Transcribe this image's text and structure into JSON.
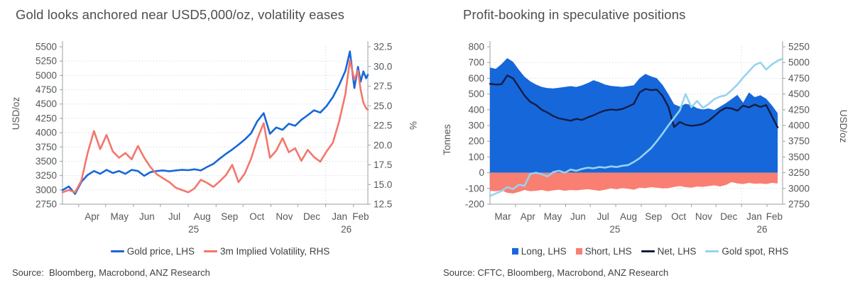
{
  "chart_data": [
    {
      "type": "line",
      "title": "Gold looks anchored near USD5,000/oz, volatility eases",
      "source": "Source:  Bloomberg, Macrobond, ANZ Research",
      "grid": "horizontal-dotted",
      "legend_position": "bottom",
      "axes": {
        "y_left": {
          "label": "USD/oz",
          "min": 2750,
          "max": 5500,
          "step": 250,
          "decimals": 0
        },
        "y_right": {
          "label": "%",
          "min": 12.5,
          "max": 32.5,
          "step": 2.5,
          "decimals": 1
        },
        "x": {
          "domain": [
            0,
            340
          ],
          "month_ticks": [
            18,
            48,
            79,
            109,
            140,
            171,
            201,
            232,
            262,
            293,
            324
          ],
          "month_labels": [
            "Apr",
            "May",
            "Jun",
            "Jul",
            "Aug",
            "Sep",
            "Oct",
            "Nov",
            "Dec",
            "Jan",
            "Feb"
          ],
          "month_label_x": [
            33,
            63.5,
            94,
            124.5,
            155.5,
            186,
            216.5,
            247,
            277.5,
            308.5,
            332
          ],
          "year_labels": [
            "25",
            "26"
          ],
          "year_label_x": [
            146,
            316
          ],
          "year_gridlines": [
            293
          ]
        }
      },
      "series": [
        {
          "name": "Gold price, LHS",
          "type": "line",
          "axis": "left",
          "color": "#1667da",
          "swatch": "line",
          "width": 2.6,
          "x": [
            0,
            7,
            14,
            21,
            28,
            35,
            42,
            49,
            56,
            63,
            70,
            77,
            84,
            91,
            98,
            105,
            112,
            119,
            126,
            133,
            140,
            147,
            154,
            161,
            168,
            175,
            182,
            189,
            196,
            203,
            210,
            217,
            224,
            231,
            238,
            245,
            252,
            259,
            266,
            273,
            280,
            287,
            294,
            301,
            308,
            315,
            320,
            325,
            329,
            332,
            335,
            338,
            340
          ],
          "y": [
            2995,
            3060,
            2930,
            3140,
            3260,
            3330,
            3280,
            3350,
            3295,
            3330,
            3280,
            3350,
            3330,
            3245,
            3310,
            3330,
            3340,
            3325,
            3340,
            3350,
            3345,
            3360,
            3340,
            3400,
            3455,
            3545,
            3630,
            3705,
            3790,
            3880,
            3990,
            4200,
            4340,
            3980,
            4090,
            4050,
            4155,
            4120,
            4225,
            4305,
            4390,
            4350,
            4465,
            4620,
            4830,
            5080,
            5420,
            4780,
            5150,
            4890,
            5070,
            4950,
            5010
          ]
        },
        {
          "name": "3m Implied Volatility, RHS",
          "type": "line",
          "axis": "right",
          "color": "#f4766c",
          "swatch": "line",
          "width": 2.6,
          "x": [
            0,
            7,
            14,
            21,
            28,
            35,
            42,
            49,
            56,
            63,
            70,
            77,
            84,
            91,
            98,
            105,
            112,
            119,
            126,
            133,
            140,
            147,
            154,
            161,
            168,
            175,
            182,
            189,
            196,
            203,
            210,
            217,
            224,
            231,
            238,
            245,
            252,
            259,
            266,
            273,
            280,
            287,
            294,
            301,
            308,
            315,
            320,
            325,
            329,
            332,
            335,
            338,
            340
          ],
          "y": [
            14.0,
            14.3,
            14.0,
            15.5,
            19.0,
            21.8,
            19.5,
            21.3,
            19.2,
            18.4,
            19.0,
            18.2,
            19.9,
            18.4,
            17.2,
            16.3,
            15.8,
            15.3,
            14.6,
            14.3,
            14.0,
            14.5,
            15.6,
            15.2,
            14.7,
            15.4,
            16.2,
            17.5,
            15.3,
            16.4,
            18.3,
            20.8,
            22.8,
            18.4,
            19.3,
            20.9,
            19.1,
            19.6,
            18.0,
            19.4,
            18.5,
            17.9,
            19.2,
            20.3,
            23.0,
            26.5,
            30.8,
            28.3,
            29.5,
            27.0,
            25.4,
            24.7,
            24.5
          ]
        }
      ]
    },
    {
      "type": "area",
      "title": "Profit-booking in speculative positions",
      "source": "Source: CFTC, Bloomberg, Macrobond, ANZ Research",
      "grid": "horizontal-dotted",
      "legend_position": "bottom",
      "axes": {
        "y_left": {
          "label": "Tonnes",
          "min": -200,
          "max": 800,
          "step": 100,
          "decimals": 0
        },
        "y_right": {
          "label": "USD/oz",
          "min": 2750,
          "max": 5250,
          "step": 250,
          "decimals": 0
        },
        "x": {
          "domain": [
            0,
            356
          ],
          "month_ticks": [
            31,
            61,
            92,
            122,
            153,
            184,
            214,
            245,
            275,
            306,
            337
          ],
          "month_labels": [
            "Mar",
            "Apr",
            "May",
            "Jun",
            "Jul",
            "Aug",
            "Sep",
            "Oct",
            "Nov",
            "Dec",
            "Jan",
            "Feb"
          ],
          "month_label_x": [
            15.5,
            46,
            76.5,
            107,
            137.5,
            168.5,
            199,
            229.5,
            260,
            290.5,
            321.5,
            346
          ],
          "year_labels": [
            "25",
            "26"
          ],
          "year_label_x": [
            152,
            331
          ],
          "year_gridlines": [
            306
          ]
        }
      },
      "series": [
        {
          "name": "Long, LHS",
          "type": "area",
          "axis": "left",
          "color": "#1667da",
          "swatch": "square",
          "x": [
            0,
            7,
            14,
            21,
            28,
            35,
            42,
            49,
            56,
            63,
            70,
            77,
            84,
            91,
            98,
            105,
            112,
            119,
            126,
            133,
            140,
            147,
            154,
            161,
            168,
            175,
            182,
            189,
            196,
            203,
            210,
            217,
            224,
            231,
            238,
            245,
            252,
            259,
            266,
            273,
            280,
            287,
            294,
            301,
            308,
            315,
            322,
            329,
            336,
            343,
            350
          ],
          "y": [
            668,
            660,
            690,
            728,
            705,
            655,
            610,
            580,
            560,
            545,
            538,
            535,
            540,
            545,
            550,
            545,
            555,
            570,
            588,
            575,
            560,
            552,
            548,
            545,
            550,
            556,
            600,
            628,
            612,
            600,
            558,
            500,
            435,
            420,
            438,
            430,
            410,
            402,
            408,
            398,
            420,
            442,
            468,
            495,
            445,
            510,
            480,
            492,
            470,
            428,
            378
          ]
        },
        {
          "name": "Short, LHS",
          "type": "area",
          "axis": "left",
          "color": "#f97f72",
          "swatch": "square",
          "x": [
            0,
            7,
            14,
            21,
            28,
            35,
            42,
            49,
            56,
            63,
            70,
            77,
            84,
            91,
            98,
            105,
            112,
            119,
            126,
            133,
            140,
            147,
            154,
            161,
            168,
            175,
            182,
            189,
            196,
            203,
            210,
            217,
            224,
            231,
            238,
            245,
            252,
            259,
            266,
            273,
            280,
            287,
            294,
            301,
            308,
            315,
            322,
            329,
            336,
            343,
            350
          ],
          "y": [
            -115,
            -118,
            -112,
            -128,
            -132,
            -122,
            -110,
            -118,
            -115,
            -110,
            -118,
            -112,
            -108,
            -115,
            -110,
            -112,
            -108,
            -105,
            -110,
            -115,
            -108,
            -100,
            -105,
            -98,
            -102,
            -108,
            -95,
            -98,
            -92,
            -95,
            -100,
            -98,
            -90,
            -85,
            -92,
            -95,
            -88,
            -90,
            -85,
            -80,
            -88,
            -78,
            -60,
            -68,
            -72,
            -65,
            -70,
            -68,
            -72,
            -65,
            -68
          ]
        },
        {
          "name": "Net, LHS",
          "type": "line",
          "axis": "left",
          "color": "#141d45",
          "swatch": "line",
          "width": 2.4,
          "x": [
            0,
            7,
            14,
            21,
            28,
            35,
            42,
            49,
            56,
            63,
            70,
            77,
            84,
            91,
            98,
            105,
            112,
            119,
            126,
            133,
            140,
            147,
            154,
            161,
            168,
            175,
            182,
            189,
            196,
            203,
            210,
            217,
            224,
            231,
            238,
            245,
            252,
            259,
            266,
            273,
            280,
            287,
            294,
            301,
            308,
            315,
            322,
            329,
            336,
            343,
            350
          ],
          "y": [
            565,
            560,
            562,
            618,
            600,
            545,
            490,
            450,
            430,
            400,
            382,
            360,
            345,
            338,
            330,
            342,
            335,
            352,
            365,
            382,
            395,
            402,
            398,
            405,
            420,
            438,
            510,
            532,
            525,
            528,
            488,
            420,
            290,
            322,
            305,
            298,
            302,
            310,
            330,
            360,
            392,
            412,
            408,
            394,
            426,
            415,
            433,
            418,
            430,
            358,
            288
          ]
        },
        {
          "name": "Gold spot, RHS",
          "type": "line",
          "axis": "right",
          "color": "#96d3f0",
          "swatch": "line",
          "width": 2.6,
          "x": [
            0,
            7,
            14,
            21,
            28,
            35,
            42,
            49,
            56,
            63,
            70,
            77,
            84,
            91,
            98,
            105,
            112,
            119,
            126,
            133,
            140,
            147,
            154,
            161,
            168,
            175,
            182,
            189,
            196,
            203,
            210,
            217,
            224,
            231,
            238,
            245,
            252,
            259,
            266,
            273,
            280,
            287,
            294,
            301,
            308,
            315,
            322,
            329,
            336,
            343,
            350,
            356
          ],
          "y": [
            2880,
            2920,
            2960,
            3020,
            2990,
            3060,
            3040,
            3230,
            3250,
            3225,
            3190,
            3260,
            3280,
            3250,
            3300,
            3280,
            3310,
            3330,
            3320,
            3340,
            3330,
            3350,
            3340,
            3360,
            3370,
            3420,
            3480,
            3560,
            3640,
            3750,
            3870,
            4000,
            4120,
            4240,
            4500,
            4290,
            4390,
            4280,
            4340,
            4420,
            4460,
            4480,
            4560,
            4650,
            4760,
            4860,
            4960,
            5000,
            4890,
            4970,
            5030,
            5060
          ]
        }
      ]
    }
  ],
  "style": {
    "grid_color": "#cdd3d4",
    "axis_color": "#9aa0a2",
    "tick_text_color": "#54575a"
  }
}
